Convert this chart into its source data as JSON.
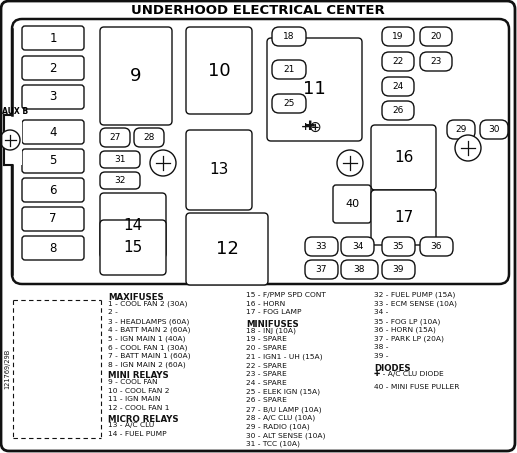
{
  "title": "UNDERHOOD ELECTRICAL CENTER",
  "legend_left_headers": [
    "MAXIFUSES",
    "MINI RELAYS",
    "MICRO RELAYS"
  ],
  "legend_left_items": [
    [
      "MAXIFUSES"
    ],
    [
      "1 - COOL FAN 2 (30A)"
    ],
    [
      "2 -"
    ],
    [
      "3 - HEADLAMPS (60A)"
    ],
    [
      "4 - BATT MAIN 2 (60A)"
    ],
    [
      "5 - IGN MAIN 1 (40A)"
    ],
    [
      "6 - COOL FAN 1 (30A)"
    ],
    [
      "7 - BATT MAIN 1 (60A)"
    ],
    [
      "8 - IGN MAIN 2 (60A)"
    ],
    [
      "MINI RELAYS"
    ],
    [
      "9 - COOL FAN"
    ],
    [
      "10 - COOL FAN 2"
    ],
    [
      "11 - IGN MAIN"
    ],
    [
      "12 - COOL FAN 1"
    ],
    [
      "MICRO RELAYS"
    ],
    [
      "13 - A/C CLU"
    ],
    [
      "14 - FUEL PUMP"
    ]
  ],
  "legend_mid_items": [
    [
      "15 - F/PMP SPD CONT"
    ],
    [
      "16 - HORN"
    ],
    [
      "17 - FOG LAMP"
    ],
    [
      "MINIFUSES",
      true
    ],
    [
      "18 - INJ (10A)"
    ],
    [
      "19 - SPARE"
    ],
    [
      "20 - SPARE"
    ],
    [
      "21 - IGN1 - UH (15A)"
    ],
    [
      "22 - SPARE"
    ],
    [
      "23 - SPARE"
    ],
    [
      "24 - SPARE"
    ],
    [
      "25 - ELEK IGN (15A)"
    ],
    [
      "26 - SPARE"
    ],
    [
      "27 - B/U LAMP (10A)"
    ],
    [
      "28 - A/C CLU (10A)"
    ],
    [
      "29 - RADIO (10A)"
    ],
    [
      "30 - ALT SENSE (10A)"
    ],
    [
      "31 - TCC (10A)"
    ]
  ],
  "legend_right_items": [
    [
      "32 - FUEL PUMP (15A)"
    ],
    [
      "33 - ECM SENSE (10A)"
    ],
    [
      "34 -"
    ],
    [
      "35 - FOG LP (10A)"
    ],
    [
      "36 - HORN (15A)"
    ],
    [
      "37 - PARK LP (20A)"
    ],
    [
      "38 -"
    ],
    [
      "39 -"
    ],
    [
      "DIODES",
      true
    ],
    [
      "✚ - A/C CLU DIODE"
    ],
    [
      ""
    ],
    [
      "40 - MINI FUSE PULLER"
    ]
  ]
}
